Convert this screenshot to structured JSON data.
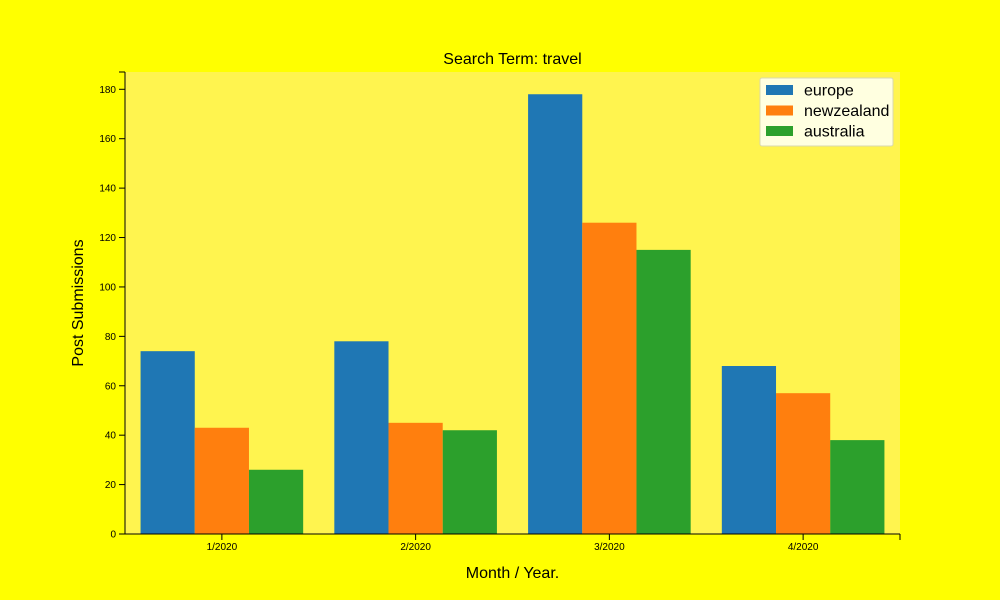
{
  "chart_data": {
    "type": "bar",
    "title": "Search Term: travel",
    "xlabel": "Month / Year.",
    "ylabel": "Post Submissions",
    "categories": [
      "1/2020",
      "2/2020",
      "3/2020",
      "4/2020"
    ],
    "series": [
      {
        "name": "europe",
        "values": [
          74,
          78,
          178,
          68
        ],
        "color": "#1f77b4"
      },
      {
        "name": "newzealand",
        "values": [
          43,
          45,
          126,
          57
        ],
        "color": "#ff7f0e"
      },
      {
        "name": "australia",
        "values": [
          26,
          42,
          115,
          38
        ],
        "color": "#2ca02c"
      }
    ],
    "ylim": [
      0,
      187
    ],
    "yticks": [
      0,
      20,
      40,
      60,
      80,
      100,
      120,
      140,
      160,
      180
    ],
    "grid": false,
    "legend_position": "top-right",
    "colors": {
      "page_background": "#ffff00",
      "plot_background": "#fff44f",
      "legend_background": "#ffffe0"
    }
  }
}
